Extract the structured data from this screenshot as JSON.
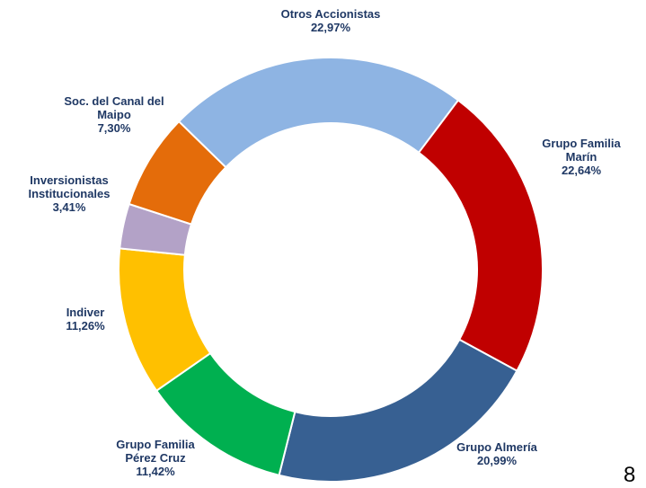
{
  "chart_data": {
    "type": "donut",
    "categories": [
      "Otros Accionistas",
      "Grupo Familia Marín",
      "Grupo Almería",
      "Grupo Familia Pérez Cruz",
      "Indiver",
      "Inversionistas Institucionales",
      "Soc. del Canal del Maipo"
    ],
    "values": [
      22.97,
      22.64,
      20.99,
      11.42,
      11.26,
      3.41,
      7.3
    ],
    "value_labels": [
      "22,97%",
      "22,64%",
      "20,99%",
      "11,42%",
      "11,26%",
      "3,41%",
      "7,30%"
    ],
    "colors": [
      "#8eb4e3",
      "#c00000",
      "#376092",
      "#00b050",
      "#ffc000",
      "#b3a2c7",
      "#e46c0a"
    ]
  },
  "page_number": "8"
}
